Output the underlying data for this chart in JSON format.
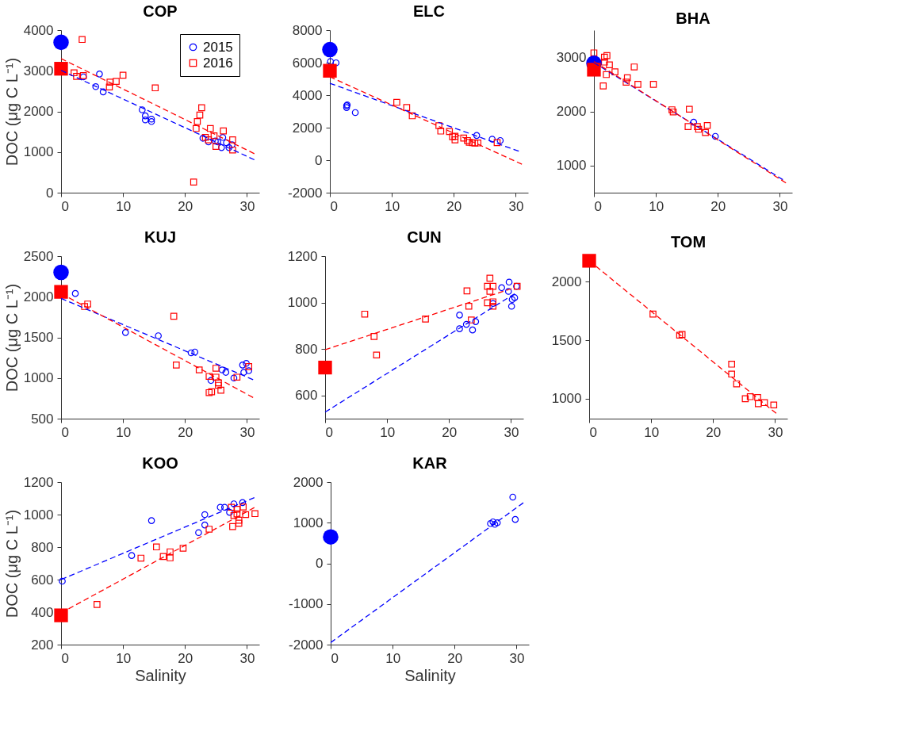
{
  "chart_data": [
    {
      "type": "scatter",
      "title": "COP",
      "ylabel": "DOC (μg C L⁻¹)",
      "xlim": [
        0,
        32
      ],
      "xticks": [
        0,
        10,
        20,
        30
      ],
      "ylim": [
        0,
        4000
      ],
      "yticks": [
        0,
        1000,
        2000,
        3000,
        4000
      ],
      "legend": "top right",
      "series": [
        {
          "name": "2015",
          "marker": "circle",
          "color": "#0000ff",
          "x": [
            3.6,
            6.2,
            5.6,
            6.8,
            13.1,
            13.6,
            13.6,
            14.6,
            14.6,
            22.9,
            23.8,
            25.3,
            26.1,
            25.9,
            26.7,
            27.1,
            27.6,
            24.9
          ],
          "values": [
            2850,
            2920,
            2610,
            2480,
            2040,
            1890,
            1790,
            1810,
            1750,
            1340,
            1250,
            1250,
            1360,
            1110,
            1230,
            1110,
            1180,
            1270
          ]
        },
        {
          "name": "2016",
          "marker": "square",
          "color": "#ff0000",
          "x": [
            3.4,
            2.1,
            2.5,
            3.6,
            7.9,
            7.8,
            8.9,
            10.0,
            15.2,
            22.7,
            22.4,
            22.0,
            21.8,
            21.4,
            23.3,
            24.1,
            23.8,
            24.7,
            25.0,
            26.2,
            27.7,
            27.7
          ],
          "values": [
            3770,
            2950,
            2860,
            2880,
            2720,
            2600,
            2740,
            2890,
            2580,
            2090,
            1910,
            1750,
            1580,
            260,
            1360,
            1580,
            1300,
            1400,
            1140,
            1520,
            1300,
            1050
          ]
        },
        {
          "type": "bubble",
          "marker": "circle",
          "color": "#0000ff",
          "x": [
            0
          ],
          "values": [
            3700
          ],
          "sizes": [
            1
          ]
        },
        {
          "type": "bubble",
          "marker": "square",
          "color": "#ff0000",
          "x": [
            0
          ],
          "values": [
            3050
          ],
          "sizes": [
            1
          ]
        },
        {
          "type": "line",
          "line_style": "dashed",
          "color": "#0000ff",
          "x": [
            0,
            31.2
          ],
          "values": [
            3010,
            810
          ]
        },
        {
          "type": "line",
          "line_style": "dashed",
          "color": "#ff0000",
          "x": [
            0,
            31.2
          ],
          "values": [
            3300,
            960
          ]
        }
      ]
    },
    {
      "type": "scatter",
      "title": "ELC",
      "xlim": [
        0,
        32
      ],
      "xticks": [
        0,
        10,
        20,
        30
      ],
      "ylim": [
        -2000,
        8000
      ],
      "yticks": [
        -2000,
        0,
        2000,
        4000,
        6000,
        8000
      ],
      "series": [
        {
          "marker": "circle",
          "color": "#0000ff",
          "x": [
            0.1,
            1.0,
            2.7,
            2.7,
            2.8,
            4.1,
            23.7,
            26.2,
            27.5
          ],
          "values": [
            6070,
            5990,
            3350,
            3240,
            3400,
            2930,
            1520,
            1290,
            1210
          ]
        },
        {
          "marker": "square",
          "color": "#ff0000",
          "x": [
            10.8,
            12.4,
            13.3,
            17.6,
            17.9,
            19.3,
            19.8,
            20.2,
            20.2,
            21.6,
            22.2,
            22.5,
            23.0,
            23.4,
            23.9,
            27.0
          ],
          "values": [
            3560,
            3240,
            2730,
            2120,
            1790,
            1760,
            1440,
            1470,
            1250,
            1360,
            1210,
            1100,
            1070,
            1050,
            1060,
            1080
          ]
        },
        {
          "type": "bubble",
          "marker": "circle",
          "color": "#0000ff",
          "x": [
            0
          ],
          "values": [
            6800
          ],
          "sizes": [
            1
          ]
        },
        {
          "type": "bubble",
          "marker": "square",
          "color": "#ff0000",
          "x": [
            0
          ],
          "values": [
            5500
          ],
          "sizes": [
            1
          ]
        },
        {
          "type": "line",
          "line_style": "dashed",
          "color": "#0000ff",
          "x": [
            0,
            30.5
          ],
          "values": [
            4730,
            550
          ]
        },
        {
          "type": "line",
          "line_style": "dashed",
          "color": "#ff0000",
          "x": [
            0,
            31
          ],
          "values": [
            5130,
            -250
          ]
        }
      ]
    },
    {
      "type": "scatter",
      "title": "BHA",
      "xlim": [
        0,
        32
      ],
      "xticks": [
        0,
        10,
        20,
        30
      ],
      "ylim": [
        500,
        3500
      ],
      "yticks": [
        1000,
        2000,
        3000
      ],
      "series": [
        {
          "marker": "circle",
          "color": "#0000ff",
          "x": [
            16.1,
            19.6
          ],
          "values": [
            1800,
            1540
          ]
        },
        {
          "marker": "square",
          "color": "#ff0000",
          "x": [
            0,
            1.7,
            2.1,
            1.7,
            2.5,
            2.0,
            1.5,
            3.4,
            6.5,
            5.4,
            5.2,
            7.1,
            9.6,
            12.6,
            12.8,
            15.4,
            15.2,
            16.7,
            16.9,
            18.3,
            18.0
          ],
          "values": [
            3080,
            3000,
            3030,
            2910,
            2860,
            2680,
            2470,
            2730,
            2820,
            2620,
            2540,
            2500,
            2500,
            2030,
            1990,
            2040,
            1720,
            1720,
            1670,
            1740,
            1610
          ]
        },
        {
          "type": "bubble",
          "marker": "circle",
          "color": "#0000ff",
          "x": [
            0
          ],
          "values": [
            2890
          ],
          "sizes": [
            1
          ]
        },
        {
          "type": "bubble",
          "marker": "square",
          "color": "#ff0000",
          "x": [
            0
          ],
          "values": [
            2770
          ],
          "sizes": [
            1
          ]
        },
        {
          "type": "line",
          "line_style": "dashed",
          "color": "#0000ff",
          "x": [
            0,
            30.5
          ],
          "values": [
            2900,
            740
          ]
        },
        {
          "type": "line",
          "line_style": "dashed",
          "color": "#ff0000",
          "x": [
            0,
            31
          ],
          "values": [
            2920,
            680
          ]
        }
      ]
    },
    {
      "type": "scatter",
      "title": "KUJ",
      "ylabel": "DOC (μg C L⁻¹)",
      "xlim": [
        0,
        32
      ],
      "xticks": [
        0,
        10,
        20,
        30
      ],
      "ylim": [
        500,
        2500
      ],
      "yticks": [
        500,
        1000,
        1500,
        2000,
        2500
      ],
      "series": [
        {
          "marker": "circle",
          "color": "#0000ff",
          "x": [
            2.3,
            10.4,
            15.7,
            21.0,
            21.6,
            24.2,
            26.0,
            26.6,
            27.9,
            29.3,
            29.9,
            29.5,
            30.3
          ],
          "values": [
            2040,
            1560,
            1520,
            1310,
            1320,
            970,
            1100,
            1070,
            1000,
            1160,
            1180,
            1070,
            1090
          ]
        },
        {
          "marker": "square",
          "color": "#ff0000",
          "x": [
            3.8,
            4.3,
            18.2,
            18.6,
            22.3,
            23.9,
            23.9,
            24.3,
            25.0,
            25.0,
            25.4,
            25.4,
            25.8,
            28.4,
            30.3
          ],
          "values": [
            1880,
            1910,
            1760,
            1160,
            1100,
            1020,
            820,
            830,
            1120,
            1010,
            940,
            910,
            850,
            1010,
            1140
          ]
        },
        {
          "type": "bubble",
          "marker": "circle",
          "color": "#0000ff",
          "x": [
            0
          ],
          "values": [
            2300
          ],
          "sizes": [
            1
          ]
        },
        {
          "type": "bubble",
          "marker": "square",
          "color": "#ff0000",
          "x": [
            0
          ],
          "values": [
            2060
          ],
          "sizes": [
            1
          ]
        },
        {
          "type": "line",
          "line_style": "dashed",
          "color": "#0000ff",
          "x": [
            0,
            31
          ],
          "values": [
            1980,
            980
          ]
        },
        {
          "type": "line",
          "line_style": "dashed",
          "color": "#ff0000",
          "x": [
            0,
            31
          ],
          "values": [
            2040,
            760
          ]
        }
      ]
    },
    {
      "type": "scatter",
      "title": "CUN",
      "xlim": [
        0,
        32
      ],
      "xticks": [
        0,
        10,
        20,
        30
      ],
      "ylim": [
        500,
        1200
      ],
      "yticks": [
        600,
        800,
        1000,
        1200
      ],
      "series": [
        {
          "marker": "circle",
          "color": "#0000ff",
          "x": [
            21.7,
            21.7,
            22.8,
            23.8,
            24.3,
            27.1,
            28.5,
            29.7,
            29.6,
            30.1,
            30.6,
            30.2,
            30.9
          ],
          "values": [
            946,
            887,
            906,
            882,
            918,
            996,
            1064,
            1088,
            1048,
            984,
            1021,
            1013,
            1070
          ]
        },
        {
          "marker": "square",
          "color": "#ff0000",
          "x": [
            6.4,
            7.9,
            8.3,
            16.2,
            23.2,
            23.6,
            22.9,
            26.6,
            26.2,
            27.1,
            26.6,
            26.2,
            27.1,
            27.1,
            31.0
          ],
          "values": [
            950,
            854,
            774,
            929,
            984,
            925,
            1050,
            1105,
            1070,
            1070,
            1048,
            999,
            1003,
            984,
            1070
          ]
        },
        {
          "type": "bubble",
          "marker": "square",
          "color": "#ff0000",
          "x": [
            0
          ],
          "values": [
            720
          ],
          "sizes": [
            1
          ]
        },
        {
          "type": "line",
          "line_style": "dashed",
          "color": "#0000ff",
          "x": [
            0,
            30.6
          ],
          "values": [
            528,
            1038
          ]
        },
        {
          "type": "line",
          "line_style": "dashed",
          "color": "#ff0000",
          "x": [
            0,
            30.1
          ],
          "values": [
            797,
            1060
          ]
        }
      ]
    },
    {
      "type": "scatter",
      "title": "TOM",
      "xlim": [
        0,
        32
      ],
      "xticks": [
        0,
        10,
        20,
        30
      ],
      "ylim": [
        830,
        2220
      ],
      "yticks": [
        1000,
        1500,
        2000
      ],
      "series": [
        {
          "marker": "square",
          "color": "#ff0000",
          "x": [
            10.3,
            14.6,
            15.0,
            23.0,
            23.0,
            23.8,
            25.2,
            26.0,
            27.2,
            27.3,
            28.3,
            29.8
          ],
          "values": [
            1724,
            1544,
            1550,
            1296,
            1211,
            1127,
            1000,
            1018,
            1011,
            958,
            967,
            947
          ]
        },
        {
          "type": "bubble",
          "marker": "square",
          "color": "#ff0000",
          "x": [
            0
          ],
          "values": [
            2180
          ],
          "sizes": [
            1
          ]
        },
        {
          "type": "line",
          "line_style": "dashed",
          "color": "#ff0000",
          "x": [
            0,
            30.2
          ],
          "values": [
            2180,
            875
          ]
        }
      ]
    },
    {
      "type": "scatter",
      "title": "KOO",
      "xlabel": "Salinity",
      "ylabel": "DOC (μg C L⁻¹)",
      "xlim": [
        0,
        32
      ],
      "xticks": [
        0,
        10,
        20,
        30
      ],
      "ylim": [
        200,
        1200
      ],
      "yticks": [
        200,
        400,
        600,
        800,
        1000,
        1200
      ],
      "series": [
        {
          "marker": "circle",
          "color": "#0000ff",
          "x": [
            0.2,
            11.4,
            14.6,
            22.2,
            23.2,
            23.2,
            25.7,
            26.4,
            27.2,
            27.9,
            29.3
          ],
          "values": [
            590,
            748,
            963,
            889,
            936,
            1000,
            1045,
            1045,
            1014,
            1066,
            1074
          ]
        },
        {
          "marker": "square",
          "color": "#ff0000",
          "x": [
            5.8,
            12.9,
            15.4,
            16.5,
            17.6,
            17.6,
            19.7,
            23.9,
            27.7,
            27.5,
            28.4,
            28.4,
            28.7,
            28.7,
            27.9,
            29.4,
            29.8,
            31.3
          ],
          "values": [
            447,
            732,
            801,
            742,
            734,
            771,
            793,
            910,
            926,
            1045,
            1033,
            1004,
            965,
            947,
            994,
            1047,
            1000,
            1006
          ]
        },
        {
          "type": "bubble",
          "marker": "square",
          "color": "#ff0000",
          "x": [
            0
          ],
          "values": [
            380
          ],
          "sizes": [
            1
          ]
        },
        {
          "type": "line",
          "line_style": "dashed",
          "color": "#0000ff",
          "x": [
            0,
            31.2
          ],
          "values": [
            600,
            1104
          ]
        },
        {
          "type": "line",
          "line_style": "dashed",
          "color": "#ff0000",
          "x": [
            0,
            31.2
          ],
          "values": [
            395,
            1043
          ]
        }
      ]
    },
    {
      "type": "scatter",
      "title": "KAR",
      "xlabel": "Salinity",
      "xlim": [
        0,
        32
      ],
      "xticks": [
        0,
        10,
        20,
        30
      ],
      "ylim": [
        -2000,
        2000
      ],
      "yticks": [
        -2000,
        -1000,
        0,
        1000,
        2000
      ],
      "series": [
        {
          "marker": "circle",
          "color": "#0000ff",
          "x": [
            29.4,
            29.8,
            25.8,
            26.2,
            26.5,
            26.9
          ],
          "values": [
            1630,
            1080,
            980,
            1020,
            960,
            1000
          ]
        },
        {
          "type": "bubble",
          "marker": "circle",
          "color": "#0000ff",
          "x": [
            0
          ],
          "values": [
            650
          ],
          "sizes": [
            1
          ]
        },
        {
          "type": "line",
          "line_style": "dashed",
          "color": "#0000ff",
          "x": [
            0,
            31.1
          ],
          "values": [
            -1950,
            1490
          ]
        }
      ]
    }
  ]
}
